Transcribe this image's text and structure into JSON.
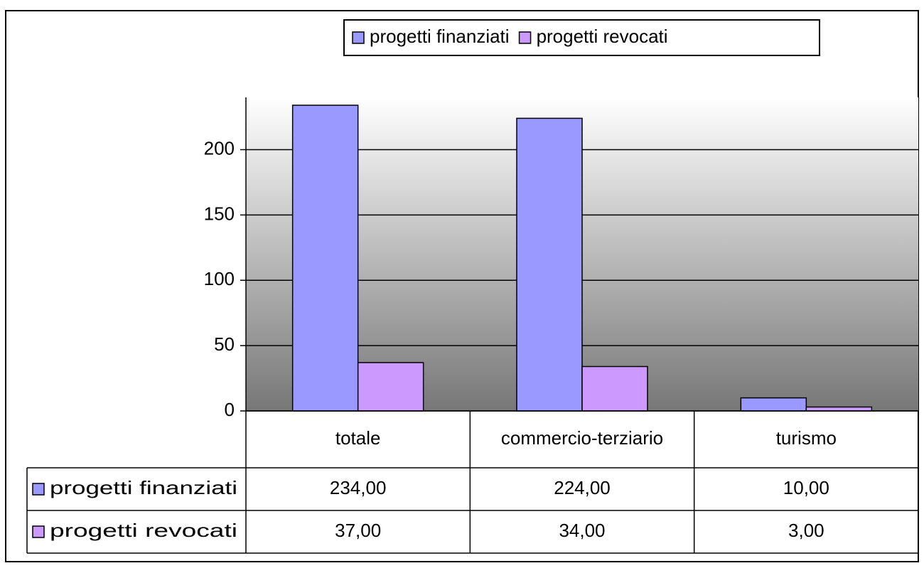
{
  "chart_data": {
    "type": "bar",
    "categories": [
      "totale",
      "commercio-terziario",
      "turismo"
    ],
    "series": [
      {
        "name": "progetti finanziati",
        "color": "#9999ff",
        "values": [
          234,
          224,
          10
        ],
        "value_labels": [
          "234,00",
          "224,00",
          "10,00"
        ]
      },
      {
        "name": "progetti revocati",
        "color": "#cc99ff",
        "values": [
          37,
          34,
          3
        ],
        "value_labels": [
          "37,00",
          "34,00",
          "3,00"
        ]
      }
    ],
    "ylim": [
      0,
      240
    ],
    "yticks": [
      0,
      50,
      100,
      150,
      200
    ],
    "grid": true,
    "legend": "top"
  }
}
